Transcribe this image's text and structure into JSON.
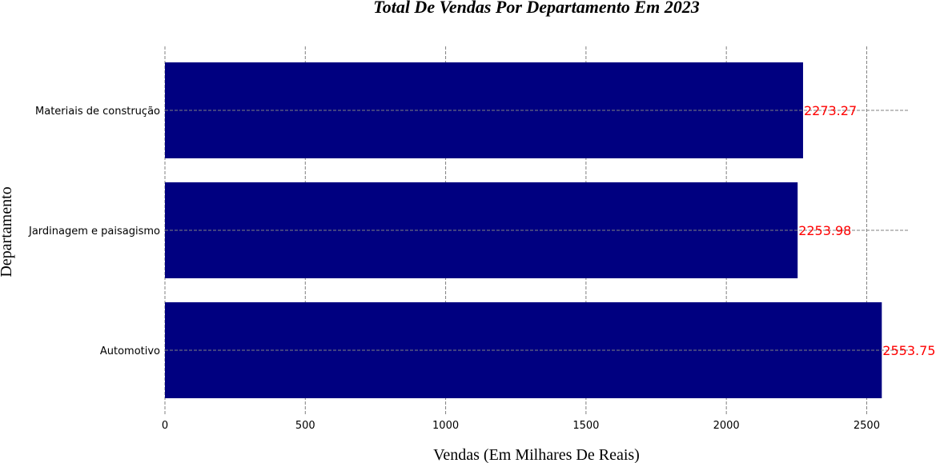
{
  "chart_data": {
    "type": "bar",
    "orientation": "horizontal",
    "title": "Total De Vendas Por Departamento Em 2023",
    "xlabel": "Vendas (Em Milhares De Reais)",
    "ylabel": "Departamento",
    "categories": [
      "Automotivo",
      "Jardinagem e paisagismo",
      "Materiais de construção"
    ],
    "values": [
      2553.75,
      2253.98,
      2273.27
    ],
    "value_labels": [
      "2553.75",
      "2253.98",
      "2273.27"
    ],
    "xlim": [
      0,
      2650
    ],
    "xticks": [
      0,
      500,
      1000,
      1500,
      2000,
      2500
    ],
    "grid": true,
    "bar_color": "#000080",
    "label_color": "#ff0000",
    "grid_color": "#808080"
  }
}
